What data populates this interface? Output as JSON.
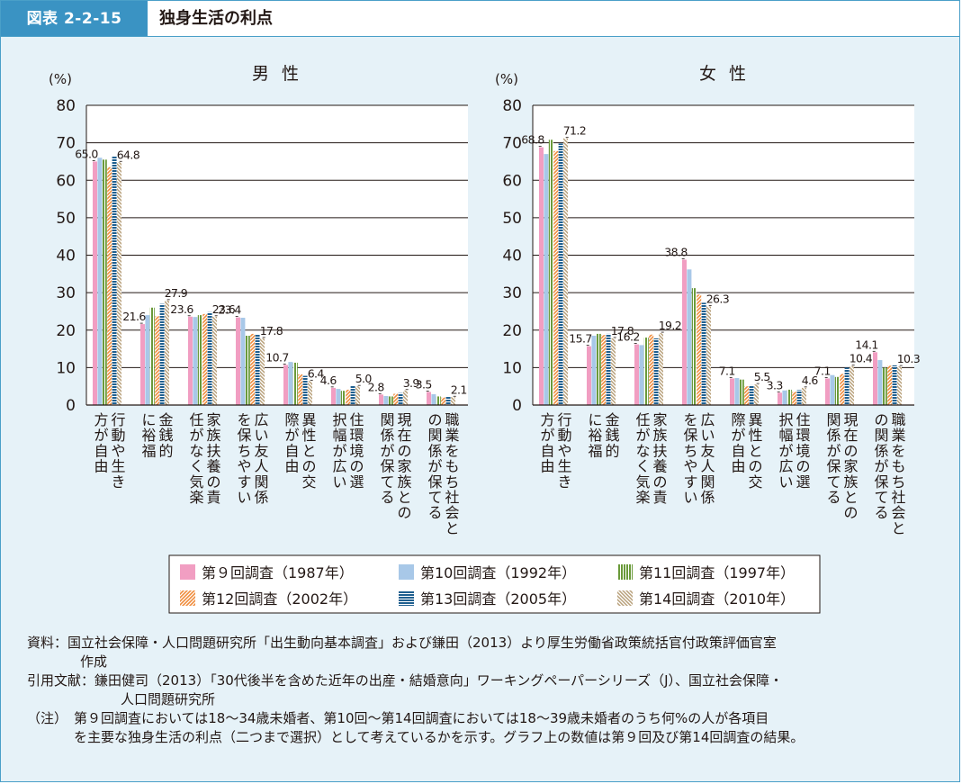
{
  "figure": {
    "tag": "図表 2-2-15",
    "title": "独身生活の利点"
  },
  "chart_data": [
    {
      "type": "bar",
      "title": "男 性",
      "ylabel": "(%)",
      "ylim": [
        0,
        80
      ],
      "yticks": [
        0,
        10,
        20,
        30,
        40,
        50,
        60,
        70,
        80
      ],
      "categories": [
        "行動や生き方が自由",
        "金銭的に裕福",
        "家族扶養の責任がなく気楽",
        "広い友人関係を保ちやすい",
        "異性との交際が自由",
        "住環境の選択幅が広い",
        "現在の家族との関係が保てる",
        "職業をもち社会との関係が保てる"
      ],
      "series": [
        {
          "name": "第９回調査（1987年）",
          "values": [
            65.0,
            21.6,
            23.6,
            23.4,
            10.7,
            4.6,
            2.8,
            3.5
          ]
        },
        {
          "name": "第10回調査（1992年）",
          "values": [
            66.0,
            24.0,
            23.5,
            23.3,
            11.5,
            4.3,
            2.4,
            2.9
          ]
        },
        {
          "name": "第11回調査（1997年）",
          "values": [
            65.5,
            26.0,
            24.0,
            18.5,
            11.3,
            3.8,
            2.3,
            2.3
          ]
        },
        {
          "name": "第12回調査（2002年）",
          "values": [
            63.5,
            23.7,
            24.3,
            19.0,
            8.2,
            4.1,
            3.0,
            2.0
          ]
        },
        {
          "name": "第13回調査（2005年）",
          "values": [
            66.3,
            27.0,
            24.8,
            18.8,
            7.8,
            5.2,
            3.2,
            2.4
          ]
        },
        {
          "name": "第14回調査（2010年）",
          "values": [
            64.8,
            27.9,
            23.6,
            17.8,
            6.4,
            5.0,
            3.9,
            2.1
          ]
        }
      ],
      "data_labels": [
        {
          "category": 0,
          "series": 0,
          "text": "65.0"
        },
        {
          "category": 0,
          "series": 5,
          "text": "64.8"
        },
        {
          "category": 1,
          "series": 0,
          "text": "21.6"
        },
        {
          "category": 1,
          "series": 5,
          "text": "27.9"
        },
        {
          "category": 2,
          "series": 0,
          "text": "23.6"
        },
        {
          "category": 2,
          "series": 5,
          "text": "23.6"
        },
        {
          "category": 3,
          "series": 0,
          "text": "23.4"
        },
        {
          "category": 3,
          "series": 5,
          "text": "17.8"
        },
        {
          "category": 4,
          "series": 0,
          "text": "10.7"
        },
        {
          "category": 4,
          "series": 5,
          "text": "6.4"
        },
        {
          "category": 5,
          "series": 0,
          "text": "4.6"
        },
        {
          "category": 5,
          "series": 5,
          "text": "5.0"
        },
        {
          "category": 6,
          "series": 0,
          "text": "2.8"
        },
        {
          "category": 6,
          "series": 5,
          "text": "3.9"
        },
        {
          "category": 7,
          "series": 0,
          "text": "3.5"
        },
        {
          "category": 7,
          "series": 5,
          "text": "2.1"
        }
      ]
    },
    {
      "type": "bar",
      "title": "女 性",
      "ylabel": "(%)",
      "ylim": [
        0,
        80
      ],
      "yticks": [
        0,
        10,
        20,
        30,
        40,
        50,
        60,
        70,
        80
      ],
      "categories": [
        "行動や生き方が自由",
        "金銭的に裕福",
        "家族扶養の責任がなく気楽",
        "広い友人関係を保ちやすい",
        "異性との交際が自由",
        "住環境の選択幅が広い",
        "現在の家族との関係が保てる",
        "職業をもち社会との関係が保てる"
      ],
      "series": [
        {
          "name": "第９回調査（1987年）",
          "values": [
            68.8,
            15.7,
            16.2,
            38.8,
            7.1,
            3.3,
            7.1,
            14.1
          ]
        },
        {
          "name": "第10回調査（1992年）",
          "values": [
            67.0,
            18.5,
            16.0,
            36.2,
            7.2,
            3.9,
            8.0,
            12.0
          ]
        },
        {
          "name": "第11回調査（1997年）",
          "values": [
            70.8,
            19.0,
            18.0,
            31.2,
            6.8,
            4.1,
            7.5,
            10.0
          ]
        },
        {
          "name": "第12回調査（2002年）",
          "values": [
            67.8,
            18.7,
            18.8,
            29.5,
            5.0,
            3.5,
            8.3,
            10.5
          ]
        },
        {
          "name": "第13回調査（2005年）",
          "values": [
            69.8,
            19.0,
            17.8,
            27.3,
            5.3,
            4.0,
            10.0,
            10.6
          ]
        },
        {
          "name": "第14回調査（2010年）",
          "values": [
            71.2,
            17.8,
            19.2,
            26.3,
            5.5,
            4.6,
            10.4,
            10.3
          ]
        }
      ],
      "data_labels": [
        {
          "category": 0,
          "series": 0,
          "text": "68.8"
        },
        {
          "category": 0,
          "series": 5,
          "text": "71.2"
        },
        {
          "category": 1,
          "series": 0,
          "text": "15.7"
        },
        {
          "category": 1,
          "series": 5,
          "text": "17.8"
        },
        {
          "category": 2,
          "series": 0,
          "text": "16.2"
        },
        {
          "category": 2,
          "series": 5,
          "text": "19.2"
        },
        {
          "category": 3,
          "series": 0,
          "text": "38.8"
        },
        {
          "category": 3,
          "series": 5,
          "text": "26.3"
        },
        {
          "category": 4,
          "series": 0,
          "text": "7.1"
        },
        {
          "category": 4,
          "series": 5,
          "text": "5.5"
        },
        {
          "category": 5,
          "series": 0,
          "text": "3.3"
        },
        {
          "category": 5,
          "series": 5,
          "text": "4.6"
        },
        {
          "category": 6,
          "series": 0,
          "text": "7.1"
        },
        {
          "category": 6,
          "series": 5,
          "text": "10.4"
        },
        {
          "category": 7,
          "series": 0,
          "text": "14.1"
        },
        {
          "category": 7,
          "series": 5,
          "text": "10.3"
        }
      ]
    }
  ],
  "legend": [
    {
      "label": "第９回調査（1987年）",
      "color": "#f19ec2"
    },
    {
      "label": "第10回調査（1992年）",
      "color": "#a8c8e8"
    },
    {
      "label": "第11回調査（1997年）",
      "color": "#6a9a3a"
    },
    {
      "label": "第12回調査（2002年）",
      "color": "#f08c3c"
    },
    {
      "label": "第13回調査（2005年）",
      "color": "#1f5f8f"
    },
    {
      "label": "第14回調査（2010年）",
      "color": "#b8a07a"
    }
  ],
  "notes": {
    "source_label": "資料：",
    "source_text": "国立社会保障・人口問題研究所「出生動向基本調査」および鎌田（2013）より厚生労働省政策統括官付政策評価官室",
    "source_text2": "作成",
    "ref_label": "引用文献：",
    "ref_text": "鎌田健司（2013）「30代後半を含めた近年の出産・結婚意向」ワーキングペーパーシリーズ（J）、国立社会保障・",
    "ref_text2": "人口問題研究所",
    "note_label": "（注）",
    "note_text": "第９回調査においては18～34歳未婚者、第10回～第14回調査においては18～39歳未婚者のうち何%の人が各項目",
    "note_text2": "を主要な独身生活の利点（二つまで選択）として考えているかを示す。グラフ上の数値は第９回及び第14回調査の結果。"
  }
}
